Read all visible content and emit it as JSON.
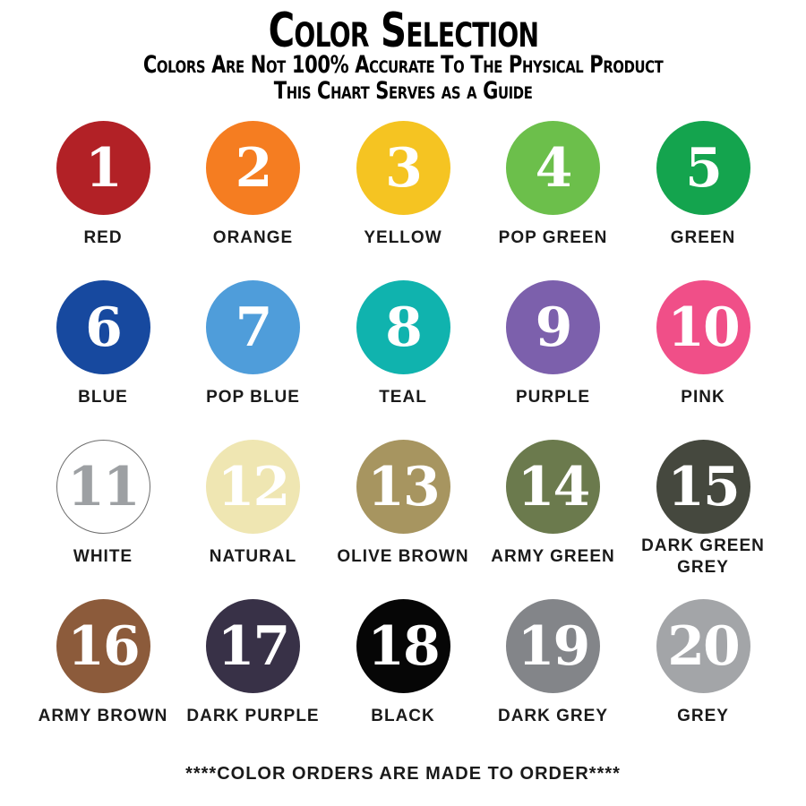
{
  "header": {
    "title": "Color Selection",
    "subtitle_line1": "Colors Are Not 100% Accurate To The Physical Product",
    "subtitle_line2": "This Chart Serves as a Guide"
  },
  "footer": {
    "note": "****COLOR ORDERS ARE MADE TO ORDER****"
  },
  "colors": [
    {
      "number": "1",
      "label": "RED",
      "hex": "#B22126",
      "number_color": "#FFFFFF"
    },
    {
      "number": "2",
      "label": "ORANGE",
      "hex": "#F57D21",
      "number_color": "#FFFFFF"
    },
    {
      "number": "3",
      "label": "YELLOW",
      "hex": "#F5C422",
      "number_color": "#FFFFFF"
    },
    {
      "number": "4",
      "label": "POP GREEN",
      "hex": "#6CBF4B",
      "number_color": "#FFFFFF"
    },
    {
      "number": "5",
      "label": "GREEN",
      "hex": "#14A44E",
      "number_color": "#FFFFFF"
    },
    {
      "number": "6",
      "label": "BLUE",
      "hex": "#17499F",
      "number_color": "#FFFFFF"
    },
    {
      "number": "7",
      "label": "POP BLUE",
      "hex": "#4F9DDA",
      "number_color": "#FFFFFF"
    },
    {
      "number": "8",
      "label": "TEAL",
      "hex": "#10B3AE",
      "number_color": "#FFFFFF"
    },
    {
      "number": "9",
      "label": "PURPLE",
      "hex": "#7C60AC",
      "number_color": "#FFFFFF"
    },
    {
      "number": "10",
      "label": "PINK",
      "hex": "#F04F88",
      "number_color": "#FFFFFF"
    },
    {
      "number": "11",
      "label": "WHITE",
      "hex": "#FFFFFF",
      "number_color": "#9DA0A3",
      "border": "#6E6E6E"
    },
    {
      "number": "12",
      "label": "NATURAL",
      "hex": "#EFE6B2",
      "number_color": "#FFFFFF"
    },
    {
      "number": "13",
      "label": "OLIVE BROWN",
      "hex": "#A79560",
      "number_color": "#FFFFFF"
    },
    {
      "number": "14",
      "label": "ARMY GREEN",
      "hex": "#6B7A4D",
      "number_color": "#FFFFFF"
    },
    {
      "number": "15",
      "label": "DARK GREEN GREY",
      "hex": "#45483E",
      "number_color": "#FFFFFF"
    },
    {
      "number": "16",
      "label": "ARMY BROWN",
      "hex": "#8C5B3B",
      "number_color": "#FFFFFF"
    },
    {
      "number": "17",
      "label": "DARK PURPLE",
      "hex": "#383147",
      "number_color": "#FFFFFF"
    },
    {
      "number": "18",
      "label": "BLACK",
      "hex": "#060606",
      "number_color": "#FFFFFF"
    },
    {
      "number": "19",
      "label": "DARK GREY",
      "hex": "#838589",
      "number_color": "#FFFFFF"
    },
    {
      "number": "20",
      "label": "GREY",
      "hex": "#A3A5A8",
      "number_color": "#FFFFFF"
    }
  ]
}
